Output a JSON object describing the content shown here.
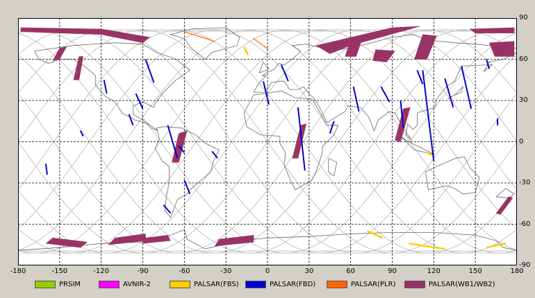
{
  "map": {
    "x_ticks": [
      "-180",
      "-150",
      "-120",
      "-90",
      "-60",
      "-30",
      "0",
      "30",
      "60",
      "90",
      "120",
      "150",
      "180"
    ],
    "y_ticks": [
      "90",
      "60",
      "30",
      "0",
      "-30",
      "-60",
      "-90"
    ]
  },
  "legend": [
    {
      "label": "PRSIM",
      "color": "#99cc00"
    },
    {
      "label": "AVNIR-2",
      "color": "#ff00ff"
    },
    {
      "label": "PALSAR(FBS)",
      "color": "#ffcc00"
    },
    {
      "label": "PALSAR(FBD)",
      "color": "#0000cc"
    },
    {
      "label": "PALSAR(PLR)",
      "color": "#ff6600"
    },
    {
      "label": "PALSAR(WB1/WB2)",
      "color": "#993366"
    }
  ],
  "chart_data": {
    "type": "map",
    "xlim": [
      -180,
      180
    ],
    "ylim": [
      -90,
      90
    ],
    "grid": true,
    "wb_swaths": [
      [
        [
          -178,
          80
        ],
        [
          -120,
          78
        ],
        [
          -90,
          72
        ],
        [
          -85,
          76
        ],
        [
          -120,
          82
        ],
        [
          -178,
          83
        ]
      ],
      [
        [
          -150,
          68
        ],
        [
          -145,
          69
        ],
        [
          -150,
          60
        ],
        [
          -155,
          59
        ]
      ],
      [
        [
          -136,
          62
        ],
        [
          -133,
          62
        ],
        [
          -136,
          45
        ],
        [
          -140,
          45
        ]
      ],
      [
        [
          -64,
          6
        ],
        [
          -58,
          8
        ],
        [
          -64,
          -15
        ],
        [
          -69,
          -15
        ]
      ],
      [
        [
          24,
          12
        ],
        [
          28,
          13
        ],
        [
          22,
          -12
        ],
        [
          18,
          -12
        ]
      ],
      [
        [
          98,
          24
        ],
        [
          103,
          25
        ],
        [
          96,
          0
        ],
        [
          92,
          1
        ]
      ],
      [
        [
          35,
          70
        ],
        [
          90,
          83
        ],
        [
          110,
          84
        ],
        [
          60,
          70
        ],
        [
          45,
          64
        ]
      ],
      [
        [
          60,
          74
        ],
        [
          68,
          74
        ],
        [
          64,
          62
        ],
        [
          56,
          62
        ]
      ],
      [
        [
          78,
          67
        ],
        [
          92,
          66
        ],
        [
          86,
          58
        ],
        [
          76,
          59
        ]
      ],
      [
        [
          112,
          78
        ],
        [
          122,
          77
        ],
        [
          115,
          60
        ],
        [
          106,
          60
        ]
      ],
      [
        [
          146,
          82
        ],
        [
          178,
          83
        ],
        [
          178,
          79
        ],
        [
          150,
          79
        ]
      ],
      [
        [
          160,
          72
        ],
        [
          178,
          73
        ],
        [
          178,
          62
        ],
        [
          164,
          62
        ]
      ],
      [
        [
          174,
          -40
        ],
        [
          177,
          -41
        ],
        [
          168,
          -53
        ],
        [
          165,
          -52
        ]
      ],
      [
        [
          -155,
          -70
        ],
        [
          -130,
          -73
        ],
        [
          -135,
          -77
        ],
        [
          -160,
          -74
        ]
      ],
      [
        [
          -110,
          -70
        ],
        [
          -88,
          -67
        ],
        [
          -88,
          -72
        ],
        [
          -115,
          -75
        ]
      ],
      [
        [
          -35,
          -71
        ],
        [
          -10,
          -68
        ],
        [
          -10,
          -73
        ],
        [
          -38,
          -76
        ]
      ],
      [
        [
          -88,
          -70
        ],
        [
          -72,
          -68
        ],
        [
          -70,
          -72
        ],
        [
          -90,
          -74
        ]
      ]
    ],
    "fbd_tracks": [
      [
        [
          -118,
          45
        ],
        [
          -116,
          35
        ]
      ],
      [
        [
          -88,
          60
        ],
        [
          -82,
          43
        ]
      ],
      [
        [
          -72,
          12
        ],
        [
          -65,
          -12
        ]
      ],
      [
        [
          -60,
          -28
        ],
        [
          -56,
          -38
        ]
      ],
      [
        [
          -75,
          -46
        ],
        [
          -70,
          -52
        ]
      ],
      [
        [
          -3,
          44
        ],
        [
          1,
          27
        ]
      ],
      [
        [
          10,
          56
        ],
        [
          15,
          44
        ]
      ],
      [
        [
          22,
          25
        ],
        [
          27,
          -21
        ]
      ],
      [
        [
          48,
          15
        ],
        [
          45,
          6
        ]
      ],
      [
        [
          62,
          40
        ],
        [
          66,
          22
        ]
      ],
      [
        [
          82,
          40
        ],
        [
          88,
          29
        ]
      ],
      [
        [
          96,
          30
        ],
        [
          98,
          10
        ]
      ],
      [
        [
          108,
          52
        ],
        [
          112,
          42
        ]
      ],
      [
        [
          112,
          52
        ],
        [
          120,
          -14
        ]
      ],
      [
        [
          128,
          46
        ],
        [
          134,
          25
        ]
      ],
      [
        [
          140,
          55
        ],
        [
          147,
          24
        ]
      ],
      [
        [
          158,
          60
        ],
        [
          160,
          53
        ]
      ],
      [
        [
          166,
          17
        ],
        [
          166,
          12
        ]
      ],
      [
        [
          -160,
          -16
        ],
        [
          -159,
          -24
        ]
      ],
      [
        [
          -100,
          20
        ],
        [
          -97,
          12
        ]
      ],
      [
        [
          -95,
          35
        ],
        [
          -90,
          24
        ]
      ],
      [
        [
          -64,
          -3
        ],
        [
          -60,
          -8
        ]
      ],
      [
        [
          -135,
          8
        ],
        [
          -133,
          4
        ]
      ],
      [
        [
          -40,
          -7
        ],
        [
          -36,
          -12
        ]
      ]
    ],
    "fbs_tracks": [
      [
        [
          -17,
          69
        ],
        [
          -14,
          63
        ]
      ],
      [
        [
          72,
          -65
        ],
        [
          83,
          -70
        ]
      ],
      [
        [
          102,
          -74
        ],
        [
          128,
          -78
        ]
      ],
      [
        [
          158,
          -77
        ],
        [
          172,
          -74
        ]
      ],
      [
        [
          115,
          -8
        ],
        [
          120,
          -10
        ]
      ]
    ],
    "plr_tracks": [
      [
        [
          -60,
          80
        ],
        [
          -38,
          73
        ]
      ],
      [
        [
          -10,
          75
        ],
        [
          1,
          67
        ]
      ]
    ]
  }
}
